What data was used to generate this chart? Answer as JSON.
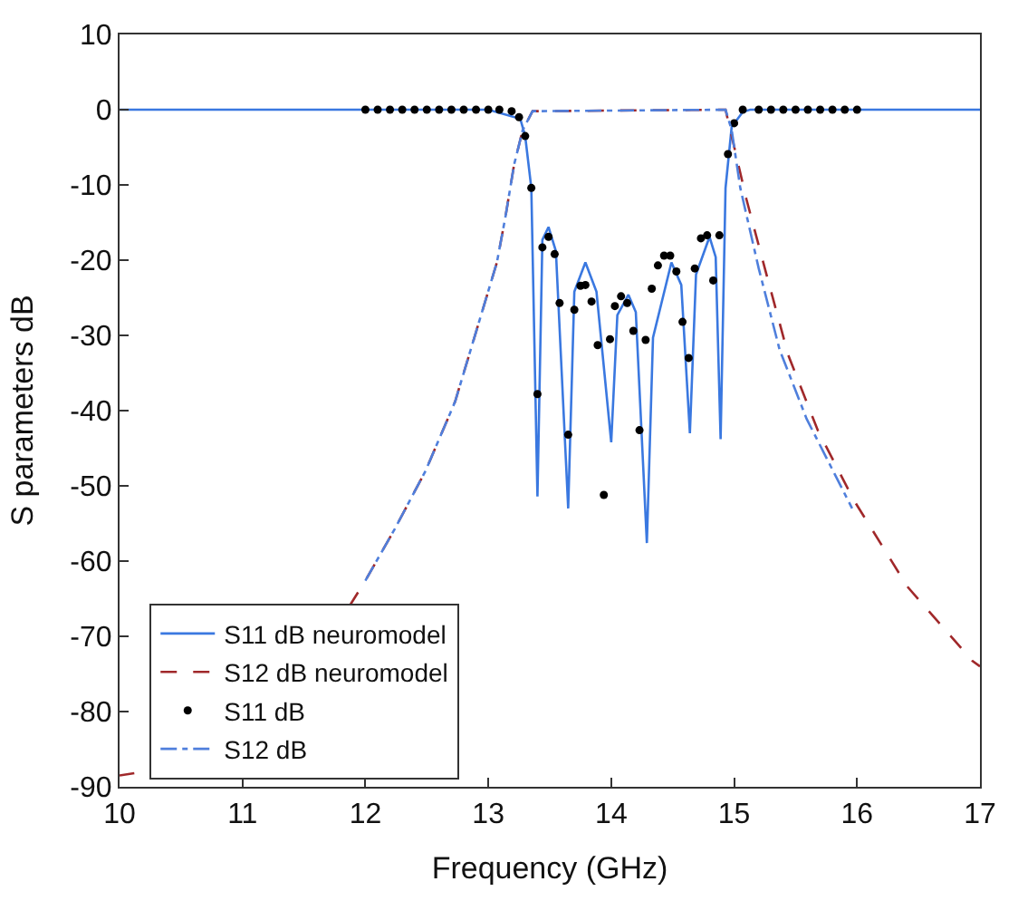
{
  "chart_data": {
    "type": "line",
    "xlabel": "Frequency (GHz)",
    "ylabel": "S parameters dB",
    "xlim": [
      10,
      17
    ],
    "xticks": [
      10,
      11,
      12,
      13,
      14,
      15,
      16,
      17
    ],
    "ylim": [
      -90,
      10
    ],
    "yticks": [
      -90,
      -80,
      -70,
      -60,
      -50,
      -40,
      -30,
      -20,
      -10,
      0,
      10
    ],
    "legend": "bottom left",
    "series": [
      {
        "name": "S11 dB neuromodel",
        "color": "#3a78e0",
        "line_style": "solid",
        "marker": "none",
        "x": [
          10,
          13.0,
          13.26,
          13.3,
          13.35,
          13.4,
          13.44,
          13.49,
          13.55,
          13.65,
          13.7,
          13.79,
          13.88,
          14.0,
          14.05,
          14.14,
          14.2,
          14.29,
          14.34,
          14.49,
          14.57,
          14.64,
          14.69,
          14.8,
          14.85,
          14.89,
          14.93,
          14.98,
          15.07,
          15.13,
          17
        ],
        "values": [
          0,
          0,
          -1.2,
          -3.5,
          -10.4,
          -51.4,
          -17.3,
          -15.6,
          -18.8,
          -53,
          -24.2,
          -20.3,
          -24.2,
          -44.2,
          -27.3,
          -24.6,
          -26.9,
          -57.6,
          -30.3,
          -20.3,
          -23.3,
          -43,
          -21.9,
          -16.9,
          -19.6,
          -43.8,
          -10.4,
          -2.3,
          -0.3,
          0,
          0
        ]
      },
      {
        "name": "S12 dB neuromodel",
        "color": "#a0282a",
        "line_style": "dashed",
        "marker": "none",
        "x": [
          10,
          10.12,
          10.3,
          11.87,
          12.0,
          12.24,
          12.49,
          12.73,
          13.07,
          13.14,
          13.21,
          13.28,
          13.36,
          14.93,
          14.98,
          15.1,
          15.25,
          15.44,
          15.68,
          15.97,
          16.41,
          16.94,
          17
        ],
        "values": [
          -88.5,
          -88.2,
          null,
          -66,
          -62.6,
          -55.7,
          -48,
          -38.8,
          -20.3,
          -14.2,
          -7.3,
          -2.7,
          -0.2,
          0,
          -3.5,
          -11.9,
          -21.1,
          -32.6,
          -42.6,
          -51.8,
          -63.4,
          -73.3,
          -74
        ]
      },
      {
        "name": "S11 dB",
        "type": "scatter",
        "color": "#000000",
        "marker": "circle",
        "x": [
          12.0,
          12.1,
          12.2,
          12.3,
          12.4,
          12.5,
          12.6,
          12.7,
          12.8,
          12.9,
          13.0,
          13.09,
          13.19,
          13.25,
          13.3,
          13.35,
          13.4,
          13.44,
          13.49,
          13.54,
          13.58,
          13.65,
          13.7,
          13.75,
          13.79,
          13.84,
          13.89,
          13.94,
          13.99,
          14.03,
          14.08,
          14.13,
          14.18,
          14.23,
          14.28,
          14.33,
          14.38,
          14.43,
          14.48,
          14.53,
          14.58,
          14.63,
          14.68,
          14.73,
          14.78,
          14.83,
          14.88,
          14.95,
          15.0,
          15.07,
          15.2,
          15.3,
          15.4,
          15.5,
          15.6,
          15.7,
          15.8,
          15.9,
          16.0
        ],
        "values": [
          0,
          0,
          0,
          0,
          0,
          0,
          0,
          0,
          0,
          0,
          0,
          0,
          -0.2,
          -1,
          -3.5,
          -10.4,
          -37.8,
          -18.3,
          -16.9,
          -19.2,
          -25.7,
          -43.2,
          -26.6,
          -23.4,
          -23.3,
          -25.5,
          -31.3,
          -51.2,
          -30.5,
          -26.1,
          -24.8,
          -25.7,
          -29.4,
          -42.6,
          -30.6,
          -23.8,
          -20.7,
          -19.4,
          -19.4,
          -21.5,
          -28.2,
          -33,
          -21.1,
          -17.1,
          -16.7,
          -22.7,
          -16.7,
          -5.9,
          -1.8,
          0,
          0,
          0,
          0,
          0,
          0,
          0,
          0,
          0,
          0
        ]
      },
      {
        "name": "S12 dB",
        "color": "#4f7fdc",
        "line_style": "dashdot",
        "marker": "none",
        "x": [
          12.0,
          12.24,
          12.49,
          12.73,
          13.07,
          13.14,
          13.21,
          13.28,
          13.36,
          14.93,
          14.98,
          15.05,
          15.2,
          15.37,
          15.59,
          15.96
        ],
        "values": [
          -62.6,
          -55.7,
          -48,
          -38.8,
          -20.3,
          -14.2,
          -7.3,
          -2.7,
          -0.2,
          0,
          -2.7,
          -10.4,
          -21.1,
          -31.9,
          -41.1,
          -53
        ]
      }
    ]
  }
}
